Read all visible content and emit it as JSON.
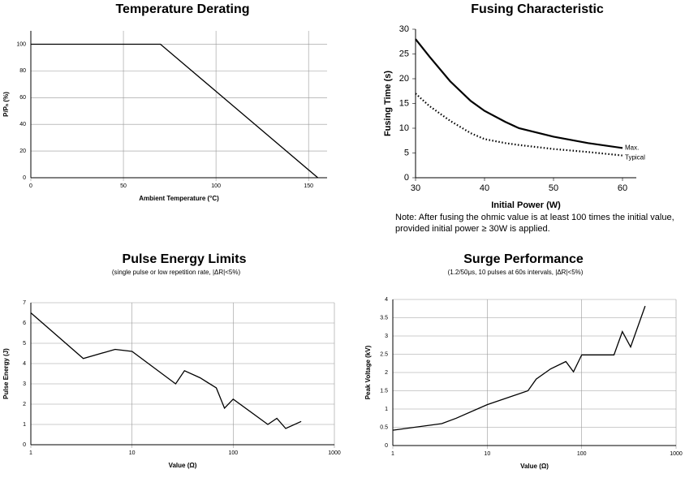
{
  "chart_data": [
    {
      "type": "line",
      "title": "Temperature Derating",
      "x_label": "Ambient Temperature (°C)",
      "y_label": "P/Pₙ (%)",
      "x": [
        0,
        70,
        155
      ],
      "values": [
        100,
        100,
        0
      ],
      "color": "#000000",
      "xlim": [
        0,
        160
      ],
      "xticks": [
        0,
        50,
        100,
        150
      ],
      "ylim": [
        0,
        110
      ],
      "yticks": [
        0,
        20,
        40,
        60,
        80,
        100
      ],
      "grid": true
    },
    {
      "type": "line",
      "title": "Fusing Characteristic",
      "x_label": "Initial Power (W)",
      "y_label": "Fusing Time (s)",
      "series": [
        {
          "name": "Max.",
          "color": "#000000",
          "style": "solid",
          "x": [
            30,
            32,
            35,
            38,
            40,
            43,
            45,
            50,
            55,
            60
          ],
          "values": [
            28,
            24.5,
            19.5,
            15.5,
            13.5,
            11.3,
            10,
            8.3,
            7,
            6
          ]
        },
        {
          "name": "Typical",
          "color": "#000000",
          "style": "dotted",
          "x": [
            30,
            32,
            35,
            38,
            40,
            43,
            45,
            50,
            55,
            60
          ],
          "values": [
            17,
            14.5,
            11.5,
            9,
            7.8,
            7,
            6.6,
            5.8,
            5.2,
            4.5
          ]
        }
      ],
      "xlim": [
        30,
        62
      ],
      "xticks": [
        30,
        40,
        50,
        60
      ],
      "ylim": [
        0,
        30
      ],
      "yticks": [
        0,
        5,
        10,
        15,
        20,
        25,
        30
      ],
      "grid": false
    },
    {
      "type": "line",
      "title": "Pulse Energy Limits",
      "subtitle": "(single pulse or low repetition rate, |ΔR|<5%)",
      "x_label": "Value (Ω)",
      "y_label": "Pulse Energy (J)",
      "x": [
        1,
        3.3,
        6.8,
        10,
        27,
        33,
        47,
        68,
        82,
        100,
        220,
        270,
        330,
        470
      ],
      "values": [
        6.5,
        4.25,
        4.7,
        4.6,
        3.0,
        3.65,
        3.3,
        2.8,
        1.8,
        2.25,
        1.0,
        1.3,
        0.8,
        1.15
      ],
      "color": "#000000",
      "xlog": true,
      "xlim": [
        1,
        1000
      ],
      "xticks": [
        1,
        10,
        100,
        1000
      ],
      "ylim": [
        0,
        7
      ],
      "yticks": [
        0,
        1,
        2,
        3,
        4,
        5,
        6,
        7
      ],
      "grid": true
    },
    {
      "type": "line",
      "title": "Surge Performance",
      "subtitle": "(1.2/50μs, 10 pulses at 60s intervals, |ΔR|<5%)",
      "x_label": "Value (Ω)",
      "y_label": "Peak Voltage (kV)",
      "x": [
        1,
        3.3,
        4.7,
        10,
        27,
        33,
        47,
        68,
        82,
        100,
        220,
        270,
        330,
        470
      ],
      "values": [
        0.42,
        0.6,
        0.75,
        1.12,
        1.5,
        1.82,
        2.1,
        2.3,
        2.02,
        2.48,
        2.48,
        3.12,
        2.7,
        3.82
      ],
      "color": "#000000",
      "xlog": true,
      "xlim": [
        1,
        1000
      ],
      "xticks": [
        1,
        10,
        100,
        1000
      ],
      "ylim": [
        0,
        4
      ],
      "yticks": [
        0,
        0.5,
        1,
        1.5,
        2,
        2.5,
        3,
        3.5,
        4
      ],
      "grid": true
    }
  ],
  "note": [
    "Note: After fusing the ohmic value is at least 100 times the initial value,",
    "provided initial power ≥ 30W is applied."
  ]
}
